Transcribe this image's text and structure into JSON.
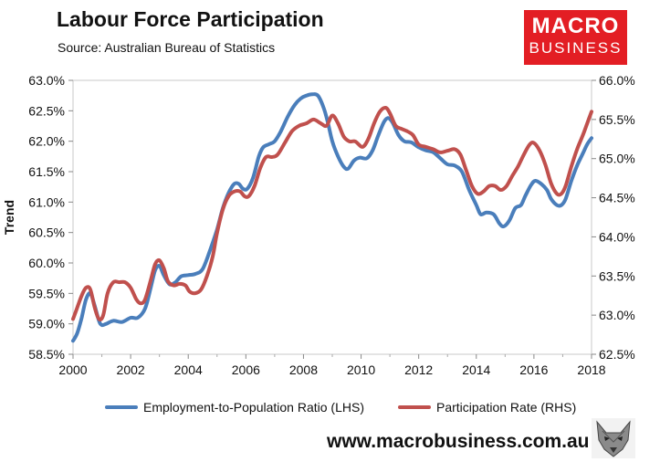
{
  "header": {
    "title": "Labour Force Participation",
    "subtitle": "Source: Australian Bureau of Statistics"
  },
  "logo": {
    "line1": "MACRO",
    "line2": "BUSINESS",
    "background": "#e31e24"
  },
  "footer": {
    "website": "www.macrobusiness.com.au",
    "mascot_icon": "wolf-head-icon"
  },
  "chart_data": {
    "type": "line",
    "title": "Labour Force Participation",
    "subtitle": "Source: Australian Bureau of Statistics",
    "ylabel": "Trend",
    "xlabel": "",
    "xlim": [
      2000,
      2018
    ],
    "x_ticks": [
      2000,
      2002,
      2004,
      2006,
      2008,
      2010,
      2012,
      2014,
      2016,
      2018
    ],
    "x_tick_labels": [
      "2000",
      "2002",
      "2004",
      "2006",
      "2008",
      "2010",
      "2012",
      "2014",
      "2016",
      "2018"
    ],
    "ylim_left": [
      58.5,
      63.0
    ],
    "y_ticks_left": [
      58.5,
      59.0,
      59.5,
      60.0,
      60.5,
      61.0,
      61.5,
      62.0,
      62.5,
      63.0
    ],
    "y_tick_labels_left": [
      "58.5%",
      "59.0%",
      "59.5%",
      "60.0%",
      "60.5%",
      "61.0%",
      "61.5%",
      "62.0%",
      "62.5%",
      "63.0%"
    ],
    "ylim_right": [
      62.5,
      66.0
    ],
    "y_ticks_right": [
      62.5,
      63.0,
      63.5,
      64.0,
      64.5,
      65.0,
      65.5,
      66.0
    ],
    "y_tick_labels_right": [
      "62.5%",
      "63.0%",
      "63.5%",
      "64.0%",
      "64.5%",
      "65.0%",
      "65.5%",
      "66.0%"
    ],
    "grid": false,
    "legend_position": "bottom",
    "series": [
      {
        "name": "Employment-to-Population Ratio (LHS)",
        "axis": "left",
        "color": "#4a7ebb",
        "points": [
          [
            2000.0,
            58.72
          ],
          [
            2000.15,
            58.85
          ],
          [
            2000.3,
            59.1
          ],
          [
            2000.45,
            59.4
          ],
          [
            2000.6,
            59.5
          ],
          [
            2000.75,
            59.3
          ],
          [
            2000.9,
            59.05
          ],
          [
            2001.0,
            58.98
          ],
          [
            2001.15,
            59.0
          ],
          [
            2001.4,
            59.05
          ],
          [
            2001.7,
            59.03
          ],
          [
            2002.0,
            59.1
          ],
          [
            2002.25,
            59.1
          ],
          [
            2002.5,
            59.25
          ],
          [
            2002.7,
            59.6
          ],
          [
            2002.85,
            59.88
          ],
          [
            2003.0,
            59.95
          ],
          [
            2003.15,
            59.8
          ],
          [
            2003.35,
            59.65
          ],
          [
            2003.55,
            59.68
          ],
          [
            2003.75,
            59.78
          ],
          [
            2004.0,
            59.8
          ],
          [
            2004.25,
            59.82
          ],
          [
            2004.5,
            59.9
          ],
          [
            2004.75,
            60.2
          ],
          [
            2005.0,
            60.55
          ],
          [
            2005.2,
            60.9
          ],
          [
            2005.4,
            61.15
          ],
          [
            2005.6,
            61.3
          ],
          [
            2005.75,
            61.3
          ],
          [
            2005.9,
            61.22
          ],
          [
            2006.05,
            61.22
          ],
          [
            2006.25,
            61.4
          ],
          [
            2006.45,
            61.75
          ],
          [
            2006.6,
            61.9
          ],
          [
            2006.8,
            61.95
          ],
          [
            2007.0,
            62.0
          ],
          [
            2007.2,
            62.15
          ],
          [
            2007.45,
            62.4
          ],
          [
            2007.7,
            62.6
          ],
          [
            2007.9,
            62.7
          ],
          [
            2008.1,
            62.75
          ],
          [
            2008.3,
            62.77
          ],
          [
            2008.5,
            62.75
          ],
          [
            2008.7,
            62.55
          ],
          [
            2008.85,
            62.3
          ],
          [
            2009.0,
            62.0
          ],
          [
            2009.2,
            61.75
          ],
          [
            2009.4,
            61.58
          ],
          [
            2009.55,
            61.55
          ],
          [
            2009.75,
            61.68
          ],
          [
            2009.95,
            61.73
          ],
          [
            2010.2,
            61.72
          ],
          [
            2010.4,
            61.85
          ],
          [
            2010.6,
            62.1
          ],
          [
            2010.8,
            62.32
          ],
          [
            2010.95,
            62.38
          ],
          [
            2011.1,
            62.3
          ],
          [
            2011.3,
            62.1
          ],
          [
            2011.5,
            62.0
          ],
          [
            2011.75,
            61.98
          ],
          [
            2012.0,
            61.9
          ],
          [
            2012.25,
            61.85
          ],
          [
            2012.5,
            61.82
          ],
          [
            2012.75,
            61.72
          ],
          [
            2013.0,
            61.62
          ],
          [
            2013.25,
            61.6
          ],
          [
            2013.5,
            61.5
          ],
          [
            2013.75,
            61.2
          ],
          [
            2014.0,
            60.95
          ],
          [
            2014.15,
            60.8
          ],
          [
            2014.35,
            60.83
          ],
          [
            2014.6,
            60.8
          ],
          [
            2014.8,
            60.65
          ],
          [
            2014.95,
            60.6
          ],
          [
            2015.15,
            60.7
          ],
          [
            2015.35,
            60.9
          ],
          [
            2015.55,
            60.95
          ],
          [
            2015.7,
            61.1
          ],
          [
            2015.9,
            61.28
          ],
          [
            2016.05,
            61.35
          ],
          [
            2016.25,
            61.3
          ],
          [
            2016.45,
            61.2
          ],
          [
            2016.6,
            61.05
          ],
          [
            2016.8,
            60.95
          ],
          [
            2016.95,
            60.95
          ],
          [
            2017.1,
            61.05
          ],
          [
            2017.3,
            61.35
          ],
          [
            2017.5,
            61.6
          ],
          [
            2017.7,
            61.8
          ],
          [
            2017.85,
            61.95
          ],
          [
            2018.0,
            62.05
          ]
        ]
      },
      {
        "name": "Participation Rate (RHS)",
        "axis": "right",
        "color": "#c0504d",
        "points": [
          [
            2000.0,
            62.95
          ],
          [
            2000.15,
            63.1
          ],
          [
            2000.3,
            63.25
          ],
          [
            2000.45,
            63.35
          ],
          [
            2000.6,
            63.33
          ],
          [
            2000.75,
            63.1
          ],
          [
            2000.9,
            62.95
          ],
          [
            2001.05,
            63.0
          ],
          [
            2001.2,
            63.28
          ],
          [
            2001.4,
            63.42
          ],
          [
            2001.6,
            63.42
          ],
          [
            2001.8,
            63.42
          ],
          [
            2002.0,
            63.35
          ],
          [
            2002.2,
            63.2
          ],
          [
            2002.35,
            63.15
          ],
          [
            2002.5,
            63.2
          ],
          [
            2002.7,
            63.45
          ],
          [
            2002.85,
            63.65
          ],
          [
            2003.0,
            63.7
          ],
          [
            2003.15,
            63.6
          ],
          [
            2003.3,
            63.43
          ],
          [
            2003.5,
            63.38
          ],
          [
            2003.7,
            63.4
          ],
          [
            2003.9,
            63.38
          ],
          [
            2004.05,
            63.3
          ],
          [
            2004.25,
            63.28
          ],
          [
            2004.45,
            63.33
          ],
          [
            2004.65,
            63.5
          ],
          [
            2004.85,
            63.75
          ],
          [
            2005.0,
            64.05
          ],
          [
            2005.2,
            64.35
          ],
          [
            2005.4,
            64.52
          ],
          [
            2005.6,
            64.58
          ],
          [
            2005.8,
            64.58
          ],
          [
            2005.95,
            64.52
          ],
          [
            2006.1,
            64.52
          ],
          [
            2006.3,
            64.65
          ],
          [
            2006.5,
            64.88
          ],
          [
            2006.7,
            65.02
          ],
          [
            2006.9,
            65.02
          ],
          [
            2007.1,
            65.05
          ],
          [
            2007.35,
            65.2
          ],
          [
            2007.6,
            65.35
          ],
          [
            2007.85,
            65.42
          ],
          [
            2008.1,
            65.45
          ],
          [
            2008.35,
            65.5
          ],
          [
            2008.6,
            65.45
          ],
          [
            2008.8,
            65.42
          ],
          [
            2009.0,
            65.55
          ],
          [
            2009.2,
            65.45
          ],
          [
            2009.4,
            65.28
          ],
          [
            2009.6,
            65.22
          ],
          [
            2009.8,
            65.22
          ],
          [
            2010.05,
            65.15
          ],
          [
            2010.25,
            65.25
          ],
          [
            2010.45,
            65.45
          ],
          [
            2010.65,
            65.6
          ],
          [
            2010.85,
            65.65
          ],
          [
            2011.0,
            65.58
          ],
          [
            2011.2,
            65.42
          ],
          [
            2011.4,
            65.38
          ],
          [
            2011.6,
            65.35
          ],
          [
            2011.8,
            65.3
          ],
          [
            2012.0,
            65.18
          ],
          [
            2012.25,
            65.15
          ],
          [
            2012.5,
            65.12
          ],
          [
            2012.75,
            65.08
          ],
          [
            2013.0,
            65.1
          ],
          [
            2013.25,
            65.12
          ],
          [
            2013.45,
            65.05
          ],
          [
            2013.65,
            64.85
          ],
          [
            2013.85,
            64.65
          ],
          [
            2014.05,
            64.55
          ],
          [
            2014.25,
            64.58
          ],
          [
            2014.45,
            64.65
          ],
          [
            2014.65,
            64.65
          ],
          [
            2014.85,
            64.6
          ],
          [
            2015.05,
            64.65
          ],
          [
            2015.25,
            64.78
          ],
          [
            2015.45,
            64.9
          ],
          [
            2015.65,
            65.05
          ],
          [
            2015.85,
            65.18
          ],
          [
            2016.0,
            65.2
          ],
          [
            2016.2,
            65.1
          ],
          [
            2016.4,
            64.92
          ],
          [
            2016.6,
            64.68
          ],
          [
            2016.8,
            64.55
          ],
          [
            2016.95,
            64.55
          ],
          [
            2017.1,
            64.65
          ],
          [
            2017.3,
            64.9
          ],
          [
            2017.5,
            65.12
          ],
          [
            2017.7,
            65.3
          ],
          [
            2017.85,
            65.45
          ],
          [
            2018.0,
            65.6
          ]
        ]
      }
    ]
  }
}
